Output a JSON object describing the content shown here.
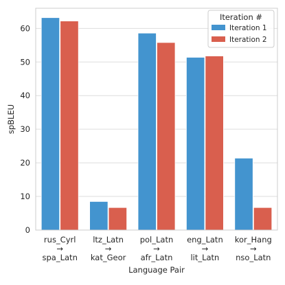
{
  "chart_data": {
    "type": "bar",
    "xlabel": "Language Pair",
    "ylabel": "spBLEU",
    "ylim": [
      0,
      66
    ],
    "yticks": [
      0,
      10,
      20,
      30,
      40,
      50,
      60
    ],
    "grid": "y",
    "legend": {
      "title": "Iteration #",
      "placement": "top-right"
    },
    "categories": [
      [
        "rus_Cyrl",
        "→",
        "spa_Latn"
      ],
      [
        "ltz_Latn",
        "→",
        "kat_Geor"
      ],
      [
        "pol_Latn",
        "→",
        "afr_Latn"
      ],
      [
        "eng_Latn",
        "→",
        "lit_Latn"
      ],
      [
        "kor_Hang",
        "→",
        "nso_Latn"
      ]
    ],
    "series": [
      {
        "name": "Iteration 1",
        "color": "#4394cf",
        "values": [
          63.2,
          8.5,
          58.6,
          51.4,
          21.4
        ]
      },
      {
        "name": "Iteration 2",
        "color": "#d95f4e",
        "values": [
          62.2,
          6.7,
          55.8,
          51.8,
          6.7
        ]
      }
    ]
  }
}
